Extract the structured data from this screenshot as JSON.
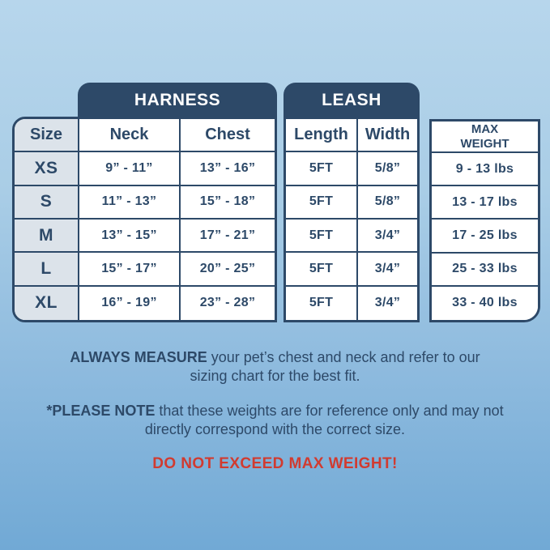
{
  "sizing_chart": {
    "group_headers": {
      "harness": "HARNESS",
      "leash": "LEASH"
    },
    "columns": {
      "size": "Size",
      "neck": "Neck",
      "chest": "Chest",
      "length": "Length",
      "width": "Width",
      "max_weight": "MAX\nWEIGHT"
    },
    "rows": [
      {
        "size": "XS",
        "neck": "9” - 11”",
        "chest": "13” - 16”",
        "length": "5FT",
        "width": "5/8”",
        "max_weight": "9 - 13 lbs"
      },
      {
        "size": "S",
        "neck": "11” - 13”",
        "chest": "15” - 18”",
        "length": "5FT",
        "width": "5/8”",
        "max_weight": "13 - 17 lbs"
      },
      {
        "size": "M",
        "neck": "13” - 15”",
        "chest": "17” - 21”",
        "length": "5FT",
        "width": "3/4”",
        "max_weight": "17 - 25 lbs"
      },
      {
        "size": "L",
        "neck": "15” - 17”",
        "chest": "20” - 25”",
        "length": "5FT",
        "width": "3/4”",
        "max_weight": "25 - 33 lbs"
      },
      {
        "size": "XL",
        "neck": "16” - 19”",
        "chest": "23” - 28”",
        "length": "5FT",
        "width": "3/4”",
        "max_weight": "33 - 40 lbs"
      }
    ]
  },
  "notes": {
    "measure_bold": "ALWAYS MEASURE",
    "measure_rest": " your pet’s chest and neck and refer to our sizing chart for the best fit.",
    "please_bold": "*PLEASE NOTE",
    "please_rest": " that these weights are for reference only and may not directly correspond with the correct size.",
    "warning": "DO NOT EXCEED MAX WEIGHT!"
  },
  "colors": {
    "navy": "#2d4968",
    "size_column_bg": "#dce3ea",
    "cell_bg": "#ffffff",
    "warning_red": "#d13b30",
    "background_top": "#b7d6ec",
    "background_bottom": "#71a9d5"
  },
  "chart_data": {
    "type": "table",
    "title": "",
    "column_groups": [
      {
        "label": "HARNESS",
        "columns": [
          "Neck",
          "Chest"
        ]
      },
      {
        "label": "LEASH",
        "columns": [
          "Length",
          "Width"
        ]
      }
    ],
    "columns": [
      "Size",
      "Neck",
      "Chest",
      "Length",
      "Width",
      "MAX WEIGHT"
    ],
    "rows": [
      [
        "XS",
        "9” - 11”",
        "13” - 16”",
        "5FT",
        "5/8”",
        "9 - 13 lbs"
      ],
      [
        "S",
        "11” - 13”",
        "15” - 18”",
        "5FT",
        "5/8”",
        "13 - 17 lbs"
      ],
      [
        "M",
        "13” - 15”",
        "17” - 21”",
        "5FT",
        "3/4”",
        "17 - 25 lbs"
      ],
      [
        "L",
        "15” - 17”",
        "20” - 25”",
        "5FT",
        "3/4”",
        "25 - 33 lbs"
      ],
      [
        "XL",
        "16” - 19”",
        "23” - 28”",
        "5FT",
        "3/4”",
        "33 - 40 lbs"
      ]
    ],
    "notes": [
      "ALWAYS MEASURE your pet’s chest and neck and refer to our sizing chart for the best fit.",
      "*PLEASE NOTE that these weights are for reference only and may not directly correspond with the correct size.",
      "DO NOT EXCEED MAX WEIGHT!"
    ]
  }
}
